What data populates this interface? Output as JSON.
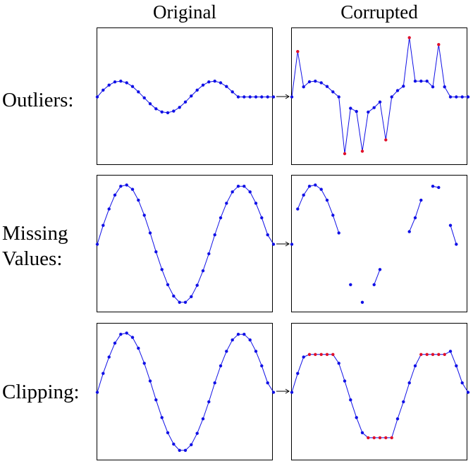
{
  "column_titles": {
    "original": "Original",
    "corrupted": "Corrupted"
  },
  "rows": [
    {
      "id": "outliers",
      "label_lines": [
        "Outliers:"
      ]
    },
    {
      "id": "missing",
      "label_lines": [
        "Missing",
        "Values:"
      ]
    },
    {
      "id": "clipping",
      "label_lines": [
        "Clipping:"
      ]
    }
  ],
  "colors": {
    "series": "#1010e6",
    "corrupted_point": "#e0102a",
    "frame": "#000000"
  },
  "chart_data": [
    {
      "type": "line",
      "panel": "outliers-original",
      "ylim": [
        -1,
        1
      ],
      "x": [
        0,
        1,
        2,
        3,
        4,
        5,
        6,
        7,
        8,
        9,
        10,
        11,
        12,
        13,
        14,
        15,
        16,
        17,
        18,
        19,
        20,
        21,
        22,
        23,
        24,
        25,
        26,
        27,
        28,
        29,
        30
      ],
      "y": [
        0.0,
        0.108,
        0.188,
        0.238,
        0.25,
        0.225,
        0.165,
        0.08,
        -0.015,
        -0.108,
        -0.188,
        -0.238,
        -0.25,
        -0.225,
        -0.165,
        -0.08,
        0.015,
        0.108,
        0.188,
        0.238,
        0.25,
        0.225,
        0.165,
        0.08,
        0.0,
        0.0,
        0.0,
        0.0,
        0.0,
        0.0,
        0.0
      ]
    },
    {
      "type": "line",
      "panel": "outliers-corrupted",
      "ylim": [
        -1,
        1
      ],
      "x": [
        0,
        1,
        2,
        3,
        4,
        5,
        6,
        7,
        8,
        9,
        10,
        11,
        12,
        13,
        14,
        15,
        16,
        17,
        18,
        19,
        20,
        21,
        22,
        23,
        24,
        25,
        26,
        27,
        28,
        29,
        30
      ],
      "y": [
        0.0,
        0.72,
        0.16,
        0.24,
        0.25,
        0.225,
        0.165,
        0.08,
        0.0,
        -0.9,
        -0.18,
        -0.23,
        -0.86,
        -0.24,
        -0.17,
        -0.08,
        -0.68,
        0.0,
        0.1,
        0.17,
        0.94,
        0.25,
        0.25,
        0.25,
        0.16,
        0.83,
        0.16,
        0.0,
        0.0,
        0.0,
        0.0
      ],
      "outlier_indices": [
        1,
        9,
        12,
        16,
        20,
        25
      ]
    },
    {
      "type": "line",
      "panel": "missing-original",
      "ylim": [
        -1,
        1
      ],
      "x": [
        0,
        1,
        2,
        3,
        4,
        5,
        6,
        7,
        8,
        9,
        10,
        11,
        12,
        13,
        14,
        15,
        16,
        17,
        18,
        19,
        20,
        21,
        22,
        23,
        24,
        25,
        26,
        27,
        28,
        29,
        30
      ],
      "y": [
        0.0,
        0.3,
        0.56,
        0.78,
        0.92,
        0.94,
        0.87,
        0.7,
        0.46,
        0.18,
        -0.12,
        -0.4,
        -0.64,
        -0.82,
        -0.92,
        -0.92,
        -0.83,
        -0.65,
        -0.42,
        -0.15,
        0.15,
        0.42,
        0.65,
        0.83,
        0.92,
        0.92,
        0.83,
        0.65,
        0.42,
        0.15,
        0.0
      ]
    },
    {
      "type": "line",
      "panel": "missing-corrupted",
      "ylim": [
        -1,
        1
      ],
      "x": [
        0,
        1,
        2,
        3,
        4,
        5,
        6,
        7,
        8,
        9,
        10,
        11,
        12,
        13,
        14,
        15,
        16,
        17,
        18,
        19,
        20,
        21,
        22,
        23,
        24,
        25,
        26,
        27,
        28,
        29,
        30
      ],
      "y": [
        0.0,
        0.56,
        0.78,
        0.92,
        0.94,
        0.87,
        0.7,
        0.46,
        0.18,
        null,
        -0.64,
        null,
        -0.92,
        null,
        -0.64,
        -0.4,
        null,
        null,
        null,
        null,
        0.2,
        0.42,
        0.7,
        null,
        0.92,
        0.9,
        null,
        0.3,
        0.0,
        null,
        null
      ],
      "segments": [
        [
          1,
          8
        ],
        [
          14,
          15
        ],
        [
          20,
          22
        ],
        [
          24,
          25
        ],
        [
          27,
          28
        ]
      ]
    },
    {
      "type": "line",
      "panel": "clipping-original",
      "ylim": [
        -1,
        1
      ],
      "x": [
        0,
        1,
        2,
        3,
        4,
        5,
        6,
        7,
        8,
        9,
        10,
        11,
        12,
        13,
        14,
        15,
        16,
        17,
        18,
        19,
        20,
        21,
        22,
        23,
        24,
        25,
        26,
        27,
        28,
        29,
        30
      ],
      "y": [
        0.0,
        0.3,
        0.56,
        0.78,
        0.92,
        0.94,
        0.87,
        0.7,
        0.46,
        0.18,
        -0.12,
        -0.4,
        -0.64,
        -0.82,
        -0.92,
        -0.92,
        -0.83,
        -0.65,
        -0.42,
        -0.15,
        0.15,
        0.42,
        0.65,
        0.83,
        0.92,
        0.92,
        0.83,
        0.65,
        0.42,
        0.15,
        0.0
      ]
    },
    {
      "type": "line",
      "panel": "clipping-corrupted",
      "ylim": [
        -1,
        1
      ],
      "x": [
        0,
        1,
        2,
        3,
        4,
        5,
        6,
        7,
        8,
        9,
        10,
        11,
        12,
        13,
        14,
        15,
        16,
        17,
        18,
        19,
        20,
        21,
        22,
        23,
        24,
        25,
        26,
        27,
        28,
        29,
        30
      ],
      "y": [
        0.0,
        0.3,
        0.56,
        0.6,
        0.6,
        0.6,
        0.6,
        0.6,
        0.46,
        0.18,
        -0.12,
        -0.4,
        -0.64,
        -0.72,
        -0.72,
        -0.72,
        -0.72,
        -0.72,
        -0.42,
        -0.15,
        0.15,
        0.42,
        0.6,
        0.6,
        0.6,
        0.6,
        0.6,
        0.65,
        0.42,
        0.15,
        0.0
      ],
      "clipped_indices": [
        3,
        4,
        5,
        6,
        7,
        13,
        14,
        15,
        16,
        17,
        22,
        23,
        24,
        25,
        26
      ]
    }
  ]
}
